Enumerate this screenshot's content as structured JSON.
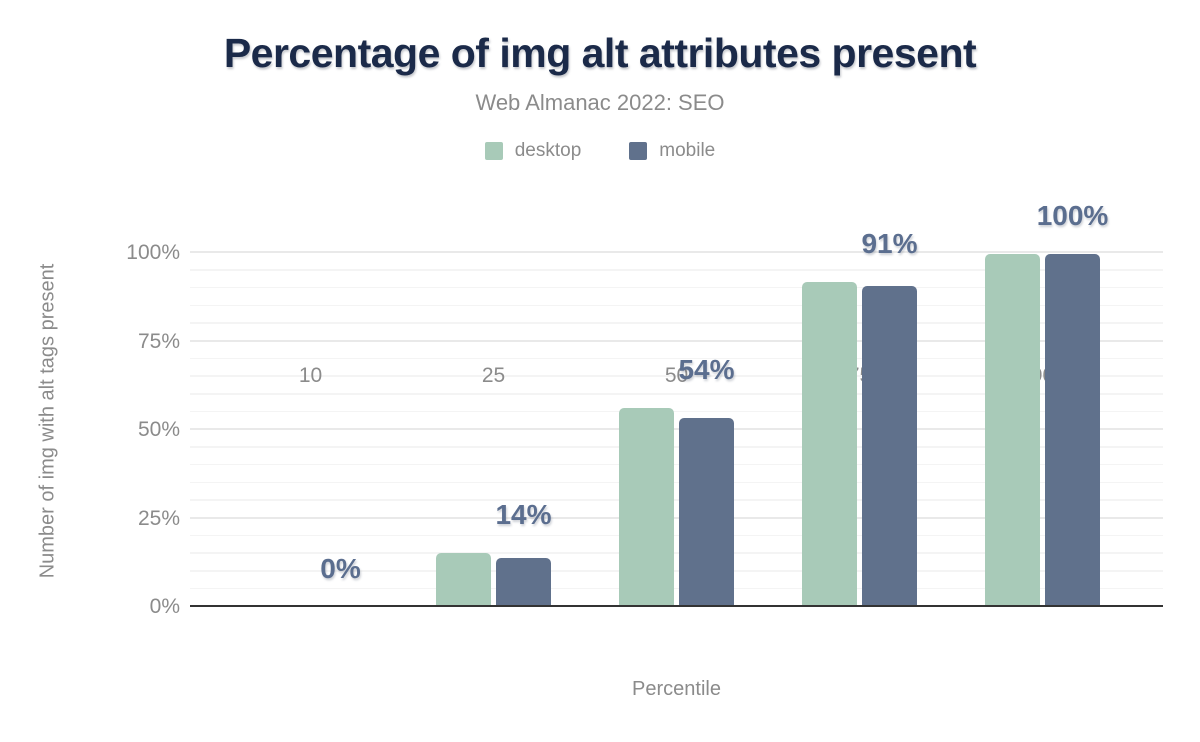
{
  "chart": {
    "title": "Percentage of img alt attributes present",
    "subtitle": "Web Almanac 2022: SEO",
    "colors": {
      "title": "#1b2a49",
      "muted_text": "#8b8b8b",
      "data_label": "#5b6e8f",
      "axis_line": "#333333",
      "gridline_major": "#e9e9e9",
      "gridline_minor": "#f4f4f4",
      "desktop": "#a8cab8",
      "mobile": "#60718c"
    }
  },
  "chart_data": {
    "type": "bar",
    "title": "Percentage of img alt attributes present",
    "subtitle": "Web Almanac 2022: SEO",
    "xlabel": "Percentile",
    "ylabel": "Number of img with alt tags present",
    "categories": [
      "10",
      "25",
      "50",
      "75",
      "90"
    ],
    "series": [
      {
        "name": "desktop",
        "color": "#a8cab8",
        "values": [
          0,
          15.3,
          56.2,
          91.9,
          99.6
        ]
      },
      {
        "name": "mobile",
        "color": "#60718c",
        "values": [
          0,
          13.8,
          53.5,
          90.8,
          99.6
        ]
      }
    ],
    "data_labels": [
      "0%",
      "14%",
      "54%",
      "91%",
      "100%"
    ],
    "y_ticks": [
      {
        "value": 0,
        "label": "0%"
      },
      {
        "value": 25,
        "label": "25%"
      },
      {
        "value": 50,
        "label": "50%"
      },
      {
        "value": 75,
        "label": "75%"
      },
      {
        "value": 100,
        "label": "100%"
      }
    ],
    "ylim": [
      0,
      100
    ],
    "grid": "horizontal every 5%, light gray",
    "legend_position": "top-center"
  }
}
